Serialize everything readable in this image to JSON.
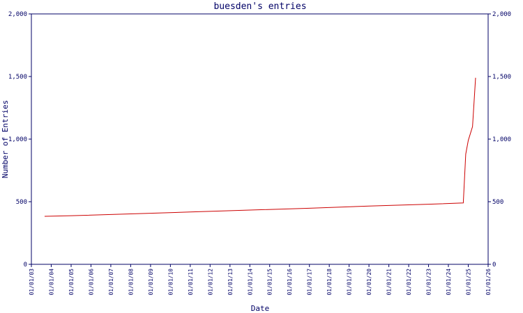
{
  "chart_data": {
    "type": "line",
    "title": "buesden's entries",
    "xlabel": "Date",
    "ylabel": "Number of Entries",
    "ylim": [
      0,
      2000
    ],
    "y_ticks": [
      0,
      500,
      1000,
      1500,
      2000
    ],
    "y_tick_labels": [
      "0",
      "500",
      "1,000",
      "1,500",
      "2,000"
    ],
    "x_ticks": [
      "2003-01-01",
      "2004-01-01",
      "2005-01-01",
      "2006-01-01",
      "2007-01-01",
      "2008-01-01",
      "2009-01-01",
      "2010-01-01",
      "2011-01-01",
      "2012-01-01",
      "2013-01-01",
      "2014-01-01",
      "2015-01-01",
      "2016-01-01",
      "2017-01-01",
      "2018-01-01",
      "2019-01-01",
      "2020-01-01",
      "2021-01-01",
      "2022-01-01",
      "2023-01-01",
      "2024-01-01",
      "2025-01-01",
      "2026-01-01"
    ],
    "x_tick_labels": [
      "01/01/03",
      "01/01/04",
      "01/01/05",
      "01/01/06",
      "01/01/07",
      "01/01/08",
      "01/01/09",
      "01/01/10",
      "01/01/11",
      "01/01/12",
      "01/01/13",
      "01/01/14",
      "01/01/15",
      "01/01/16",
      "01/01/17",
      "01/01/18",
      "01/01/19",
      "01/01/20",
      "01/01/21",
      "01/01/22",
      "01/01/23",
      "01/01/24",
      "01/01/25",
      "01/01/26"
    ],
    "xlim": [
      "2003-01-01",
      "2026-01-01"
    ],
    "grid": false,
    "legend": "none",
    "colors": {
      "axis": "#000066",
      "line": "#cc0000",
      "text": "#000066"
    },
    "series": [
      {
        "points": [
          [
            "2003-09-01",
            383
          ],
          [
            "2005-01-01",
            388
          ],
          [
            "2008-01-01",
            403
          ],
          [
            "2011-01-01",
            418
          ],
          [
            "2014-01-01",
            433
          ],
          [
            "2017-01-01",
            448
          ],
          [
            "2020-01-01",
            465
          ],
          [
            "2023-01-01",
            480
          ],
          [
            "2024-10-01",
            490
          ],
          [
            "2024-11-15",
            880
          ],
          [
            "2025-01-01",
            990
          ],
          [
            "2025-03-20",
            1100
          ],
          [
            "2025-05-15",
            1490
          ]
        ]
      }
    ]
  }
}
